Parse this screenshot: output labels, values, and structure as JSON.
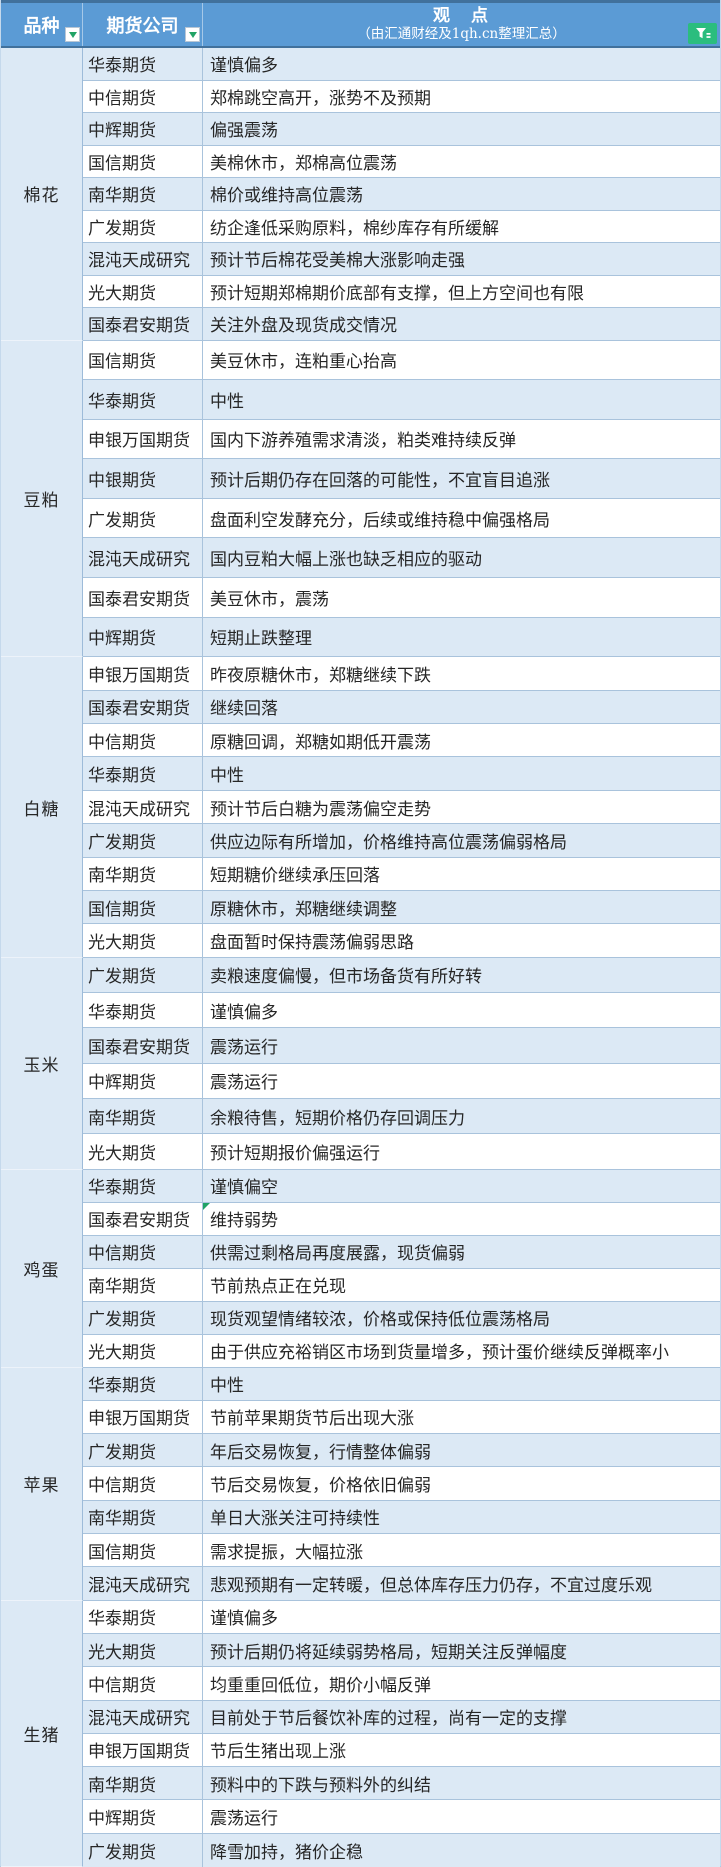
{
  "colors": {
    "header-bg": "#5B9BD5",
    "header-line": "#41719C",
    "row-alt-bg": "#DCE9F5",
    "filter-green": "#21A366",
    "funnel-green": "#2BBD7E"
  },
  "header": {
    "col_variety": "品种",
    "col_company": "期货公司",
    "col_view_title": "观　点",
    "col_view_subtitle": "（由汇通财经及1qh.cn整理汇总）"
  },
  "icons": {
    "variety_filter": "filter-dropdown-icon",
    "company_filter": "filter-dropdown-icon",
    "corner_filter": "funnel-icon"
  },
  "sections": [
    {
      "variety": "棉花",
      "rows": [
        {
          "company": "华泰期货",
          "view": "谨慎偏多"
        },
        {
          "company": "中信期货",
          "view": "郑棉跳空高开，涨势不及预期"
        },
        {
          "company": "中辉期货",
          "view": "偏强震荡"
        },
        {
          "company": "国信期货",
          "view": "美棉休市，郑棉高位震荡"
        },
        {
          "company": "南华期货",
          "view": "棉价或维持高位震荡"
        },
        {
          "company": "广发期货",
          "view": "纺企逢低采购原料，棉纱库存有所缓解"
        },
        {
          "company": "混沌天成研究",
          "view": "预计节后棉花受美棉大涨影响走强"
        },
        {
          "company": "光大期货",
          "view": "预计短期郑棉期价底部有支撑，但上方空间也有限"
        },
        {
          "company": "国泰君安期货",
          "view": "关注外盘及现货成交情况"
        }
      ]
    },
    {
      "variety": "豆粕",
      "rows": [
        {
          "company": "国信期货",
          "view": "美豆休市，连粕重心抬高"
        },
        {
          "company": "华泰期货",
          "view": "中性"
        },
        {
          "company": "申银万国期货",
          "view": "国内下游养殖需求清淡，粕类难持续反弹"
        },
        {
          "company": "中银期货",
          "view": "预计后期仍存在回落的可能性，不宜盲目追涨"
        },
        {
          "company": "广发期货",
          "view": "盘面利空发酵充分，后续或维持稳中偏强格局"
        },
        {
          "company": "混沌天成研究",
          "view": "国内豆粕大幅上涨也缺乏相应的驱动"
        },
        {
          "company": "国泰君安期货",
          "view": "美豆休市，震荡"
        },
        {
          "company": "中辉期货",
          "view": "短期止跌整理"
        }
      ]
    },
    {
      "variety": "白糖",
      "rows": [
        {
          "company": "申银万国期货",
          "view": "昨夜原糖休市，郑糖继续下跌"
        },
        {
          "company": "国泰君安期货",
          "view": "继续回落"
        },
        {
          "company": "中信期货",
          "view": "原糖回调，郑糖如期低开震荡"
        },
        {
          "company": "华泰期货",
          "view": "中性"
        },
        {
          "company": "混沌天成研究",
          "view": "预计节后白糖为震荡偏空走势"
        },
        {
          "company": "广发期货",
          "view": "供应边际有所增加，价格维持高位震荡偏弱格局"
        },
        {
          "company": "南华期货",
          "view": "短期糖价继续承压回落"
        },
        {
          "company": "国信期货",
          "view": "原糖休市，郑糖继续调整"
        },
        {
          "company": "光大期货",
          "view": "盘面暂时保持震荡偏弱思路"
        }
      ]
    },
    {
      "variety": "玉米",
      "rows": [
        {
          "company": "广发期货",
          "view": "卖粮速度偏慢，但市场备货有所好转"
        },
        {
          "company": "华泰期货",
          "view": "谨慎偏多"
        },
        {
          "company": "国泰君安期货",
          "view": "震荡运行"
        },
        {
          "company": "中辉期货",
          "view": "震荡运行"
        },
        {
          "company": "南华期货",
          "view": "余粮待售，短期价格仍存回调压力"
        },
        {
          "company": "光大期货",
          "view": "预计短期报价偏强运行"
        }
      ]
    },
    {
      "variety": "鸡蛋",
      "rows": [
        {
          "company": "华泰期货",
          "view": "谨慎偏空"
        },
        {
          "company": "国泰君安期货",
          "view": "维持弱势",
          "comment_marker": true
        },
        {
          "company": "中信期货",
          "view": "供需过剩格局再度展露，现货偏弱"
        },
        {
          "company": "南华期货",
          "view": "节前热点正在兑现"
        },
        {
          "company": "广发期货",
          "view": "现货观望情绪较浓，价格或保持低位震荡格局"
        },
        {
          "company": "光大期货",
          "view": "由于供应充裕销区市场到货量增多，预计蛋价继续反弹概率小"
        }
      ]
    },
    {
      "variety": "苹果",
      "rows": [
        {
          "company": "华泰期货",
          "view": "中性"
        },
        {
          "company": "申银万国期货",
          "view": "节前苹果期货节后出现大涨"
        },
        {
          "company": "广发期货",
          "view": "年后交易恢复，行情整体偏弱"
        },
        {
          "company": "中信期货",
          "view": "节后交易恢复，价格依旧偏弱"
        },
        {
          "company": "南华期货",
          "view": "单日大涨关注可持续性"
        },
        {
          "company": "国信期货",
          "view": "需求提振，大幅拉涨"
        },
        {
          "company": "混沌天成研究",
          "view": "悲观预期有一定转暖，但总体库存压力仍存，不宜过度乐观"
        }
      ]
    },
    {
      "variety": "生猪",
      "rows": [
        {
          "company": "华泰期货",
          "view": "谨慎偏多"
        },
        {
          "company": "光大期货",
          "view": "预计后期仍将延续弱势格局，短期关注反弹幅度"
        },
        {
          "company": "中信期货",
          "view": "均重重回低位，期价小幅反弹"
        },
        {
          "company": "混沌天成研究",
          "view": "目前处于节后餐饮补库的过程，尚有一定的支撑"
        },
        {
          "company": "申银万国期货",
          "view": "节后生猪出现上涨"
        },
        {
          "company": "南华期货",
          "view": "预料中的下跌与预料外的纠结"
        },
        {
          "company": "中辉期货",
          "view": "震荡运行"
        },
        {
          "company": "广发期货",
          "view": "降雪加持，猪价企稳"
        }
      ]
    }
  ]
}
